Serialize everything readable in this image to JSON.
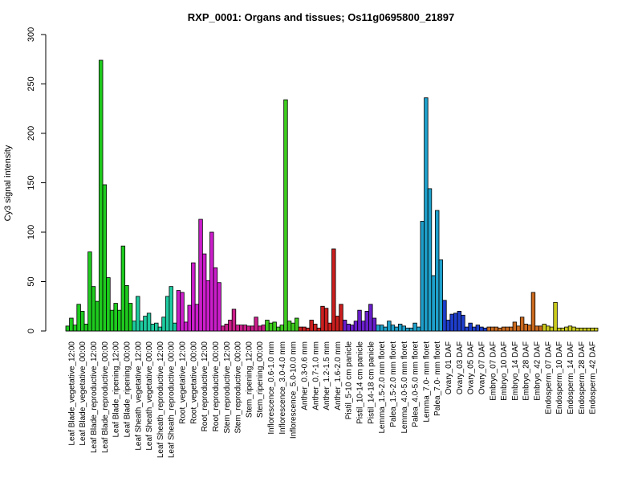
{
  "chart_data": {
    "type": "bar",
    "title": "RXP_0001: Organs and tissues; Os11g0695800_21897",
    "ylabel": "Cy3 signal intensity",
    "xlabel": "",
    "ylim": [
      0,
      300
    ],
    "yticks": [
      0,
      50,
      100,
      150,
      200,
      250,
      300
    ],
    "grid": false,
    "categories": [
      "Leaf Blade_vegetative_12:00",
      "Leaf Blade_vegetative_00:00",
      "Leaf Blade_reproductive_12:00",
      "Leaf Blade_reproductive_00:00",
      "Leaf Blade_ripening_12:00",
      "Leaf Blade_ripening_00:00",
      "Leaf Sheath_vegetative_12:00",
      "Leaf Sheath_vegetative_00:00",
      "Leaf Sheath_reproductive_12:00",
      "Leaf Sheath_reproductive_00:00",
      "Root_vegetative_12:00",
      "Root_vegetative_00:00",
      "Root_reproductive_12:00",
      "Root_reproductive_00:00",
      "Stem_reproductive_12:00",
      "Stem_reproductive_00:00",
      "Stem_ripening_12:00",
      "Stem_ripening_00:00",
      "Inflorescence_0.6-1.0 mm",
      "Inflorescence_3.0-4.0 mm",
      "Inflorescence_5.0-10.0 mm",
      "Anther_0.3-0.6 mm",
      "Anther_0.7-1.0 mm",
      "Anther_1.2-1.5 mm",
      "Anther_1.6-2.0 mm",
      "Pistil_5-10 cm panicle",
      "Pistil_10-14 cm panicle",
      "Pistil_14-18 cm panicle",
      "Lemma_1.5-2.0 mm floret",
      "Palea_1.5-2.0 mm floret",
      "Lemma_4.0-5.0 mm floret",
      "Palea_4.0-5.0 mm floret",
      "Lemma_7.0- mm floret",
      "Palea_7.0- mm floret",
      "Ovary_01 DAF",
      "Ovary_03 DAF",
      "Ovary_05 DAF",
      "Ovary_07 DAF",
      "Embryo_07 DAF",
      "Embryo_10 DAF",
      "Embryo_14 DAF",
      "Embryo_28 DAF",
      "Embryo_42 DAF",
      "Endosperm_07 DAF",
      "Endosperm_10 DAF",
      "Endosperm_14 DAF",
      "Endosperm_28 DAF",
      "Endosperm_42 DAF"
    ],
    "colors": [
      "#1ecb1e",
      "#1ecb1e",
      "#1ecb1e",
      "#1ecb1e",
      "#1ecb1e",
      "#1ecb1e",
      "#1ecba0",
      "#1ecba0",
      "#1ecba0",
      "#1ecba0",
      "#cb1ecb",
      "#cb1ecb",
      "#cb1ecb",
      "#cb1ecb",
      "#cb1e8a",
      "#cb1e8a",
      "#cb1e8a",
      "#cb1e8a",
      "#3ecb1e",
      "#3ecb1e",
      "#3ecb1e",
      "#cb1e1e",
      "#cb1e1e",
      "#cb1e1e",
      "#cb1e1e",
      "#6a1ecb",
      "#6a1ecb",
      "#6a1ecb",
      "#1ea0cb",
      "#1ea0cb",
      "#1ea0cb",
      "#1ea0cb",
      "#1ea0cb",
      "#1ea0cb",
      "#1e3ecb",
      "#1e3ecb",
      "#1e3ecb",
      "#1e3ecb",
      "#cb6a1e",
      "#cb6a1e",
      "#cb6a1e",
      "#cb6a1e",
      "#cb6a1e",
      "#cbcb1e",
      "#cbcb1e",
      "#cbcb1e",
      "#cbcb1e",
      "#cbcb1e"
    ],
    "values": [
      [
        5,
        13,
        6
      ],
      [
        27,
        20,
        7
      ],
      [
        80,
        45,
        30
      ],
      [
        274,
        148,
        54
      ],
      [
        21,
        28,
        21
      ],
      [
        86,
        46,
        28
      ],
      [
        10,
        35,
        10
      ],
      [
        15,
        18,
        7
      ],
      [
        8,
        4,
        14
      ],
      [
        35,
        45,
        8
      ],
      [
        41,
        39,
        9
      ],
      [
        26,
        69,
        27
      ],
      [
        113,
        78,
        51
      ],
      [
        100,
        64,
        49
      ],
      [
        5,
        7,
        11
      ],
      [
        22,
        6,
        6
      ],
      [
        6,
        5,
        5
      ],
      [
        14,
        5,
        6
      ],
      [
        11,
        8,
        9
      ],
      [
        4,
        6,
        234
      ],
      [
        10,
        8,
        13
      ],
      [
        4,
        4,
        3
      ],
      [
        11,
        7,
        3
      ],
      [
        25,
        23,
        8
      ],
      [
        83,
        15,
        27
      ],
      [
        11,
        7,
        6
      ],
      [
        10,
        21,
        10
      ],
      [
        20,
        27,
        13
      ],
      [
        6,
        6,
        4
      ],
      [
        10,
        6,
        4
      ],
      [
        7,
        5,
        3
      ],
      [
        3,
        8,
        4
      ],
      [
        111,
        236,
        144
      ],
      [
        56,
        122,
        72
      ],
      [
        31,
        11,
        17
      ],
      [
        18,
        20,
        16
      ],
      [
        4,
        8,
        4
      ],
      [
        6,
        4,
        3
      ],
      [
        4,
        4,
        4
      ],
      [
        3,
        4,
        4
      ],
      [
        4,
        9,
        5
      ],
      [
        14,
        7,
        6
      ],
      [
        39,
        5,
        5
      ],
      [
        7,
        5,
        4
      ],
      [
        29,
        3,
        3
      ],
      [
        4,
        5,
        4
      ],
      [
        3,
        3,
        3
      ],
      [
        3,
        3,
        3
      ]
    ]
  }
}
